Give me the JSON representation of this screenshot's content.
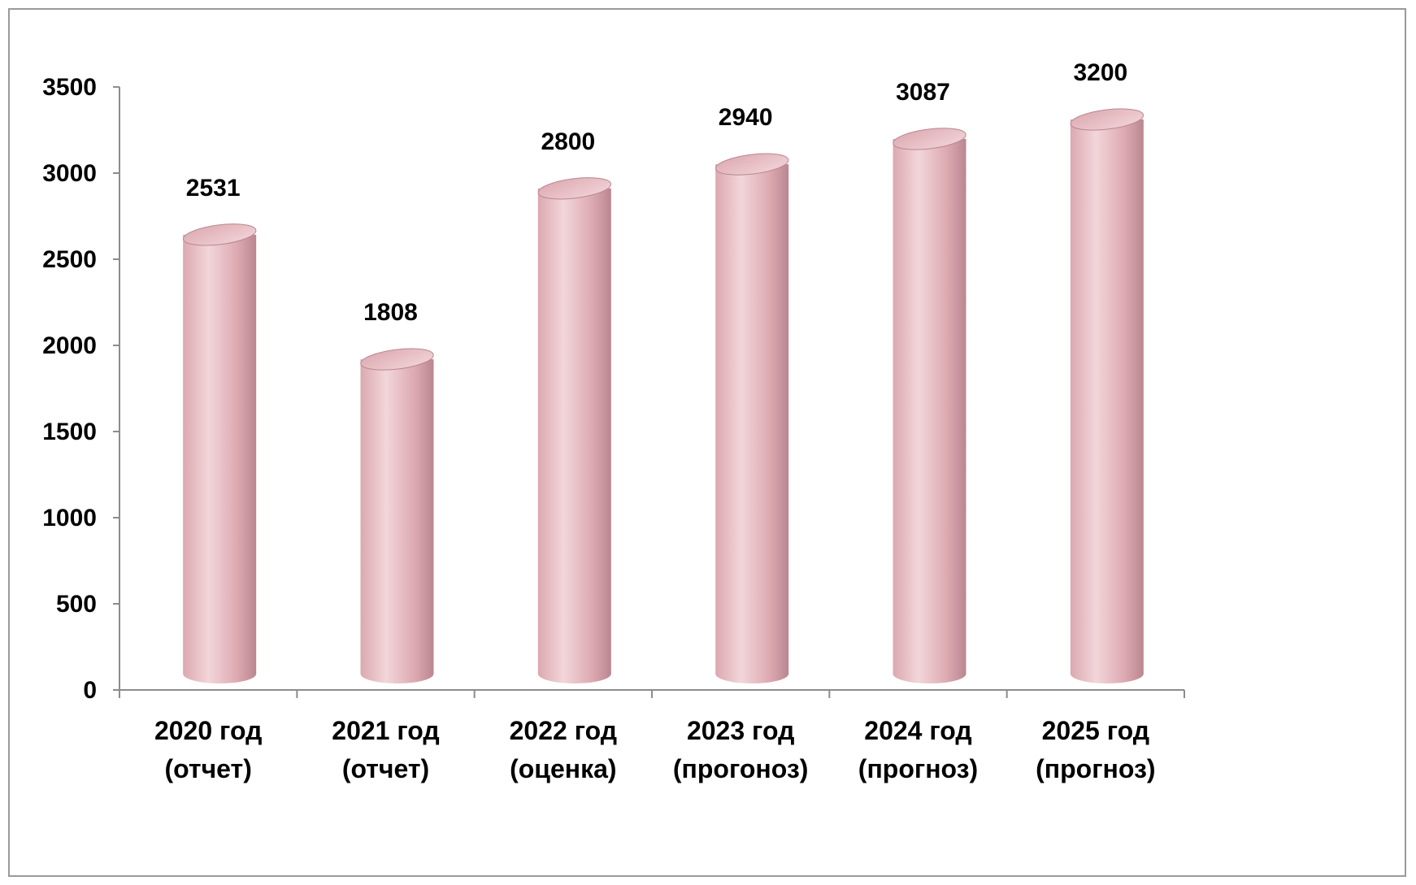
{
  "chart_data": {
    "type": "bar",
    "style": "3d-cylinder",
    "categories": [
      [
        "2020 год",
        "(отчет)"
      ],
      [
        "2021 год",
        "(отчет)"
      ],
      [
        "2022 год",
        "(оценка)"
      ],
      [
        "2023 год",
        "(прогоноз)"
      ],
      [
        "2024 год",
        "(прогноз)"
      ],
      [
        "2025 год",
        "(прогноз)"
      ]
    ],
    "values": [
      2531,
      1808,
      2800,
      2940,
      3087,
      3200
    ],
    "data_labels": [
      "2531",
      "1808",
      "2800",
      "2940",
      "3087",
      "3200"
    ],
    "yticks": [
      0,
      500,
      1000,
      1500,
      2000,
      2500,
      3000,
      3500
    ],
    "ylim": [
      0,
      3500
    ],
    "grid": false,
    "legend": "none",
    "colors": {
      "bar_light": "#f2d6da",
      "bar_mid": "#dca8b0",
      "bar_dark": "#b98690",
      "axis": "#8c8c8c"
    }
  }
}
